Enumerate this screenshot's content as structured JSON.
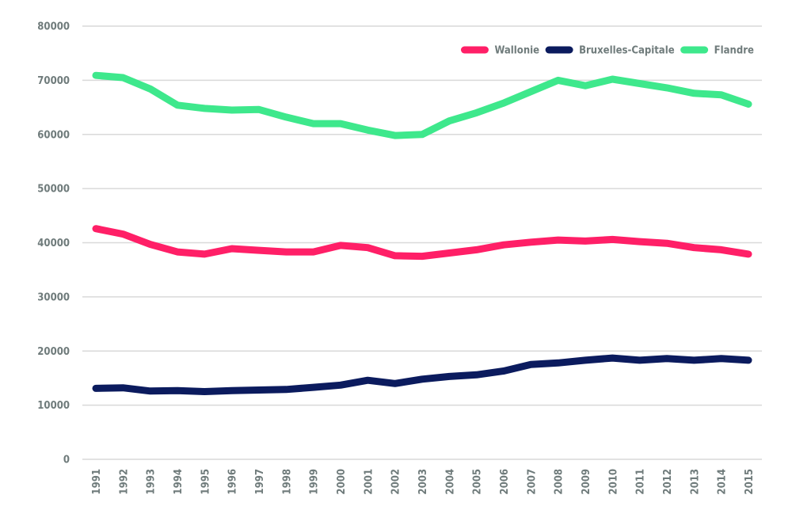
{
  "chart_data": {
    "type": "line",
    "title": "",
    "xlabel": "",
    "ylabel": "",
    "ylim": [
      0,
      80000
    ],
    "yticks": [
      0,
      10000,
      20000,
      30000,
      40000,
      50000,
      60000,
      70000,
      80000
    ],
    "grid": true,
    "legend_position": "top-right",
    "categories": [
      "1991",
      "1992",
      "1993",
      "1994",
      "1995",
      "1996",
      "1997",
      "1998",
      "1999",
      "2000",
      "2001",
      "2002",
      "2003",
      "2004",
      "2005",
      "2006",
      "2007",
      "2008",
      "2009",
      "2010",
      "2011",
      "2012",
      "2013",
      "2014",
      "2015"
    ],
    "series": [
      {
        "name": "Wallonie",
        "color": "#ff1f67",
        "values": [
          42600,
          41600,
          39700,
          38300,
          37900,
          38900,
          38600,
          38300,
          38300,
          39500,
          39100,
          37600,
          37500,
          38100,
          38700,
          39600,
          40100,
          40500,
          40300,
          40600,
          40200,
          39900,
          39100,
          38700,
          37900
        ]
      },
      {
        "name": "Bruxelles-Capitale",
        "color": "#0b1b5e",
        "values": [
          13100,
          13200,
          12600,
          12700,
          12500,
          12700,
          12800,
          12900,
          13300,
          13700,
          14600,
          14000,
          14800,
          15300,
          15600,
          16300,
          17500,
          17800,
          18300,
          18700,
          18300,
          18600,
          18300,
          18600,
          18300
        ]
      },
      {
        "name": "Flandre",
        "color": "#3ee88c",
        "values": [
          70900,
          70500,
          68400,
          65400,
          64800,
          64500,
          64600,
          63200,
          62000,
          62000,
          60800,
          59800,
          60000,
          62500,
          64000,
          65800,
          67900,
          70000,
          69000,
          70200,
          69400,
          68600,
          67600,
          67300,
          65600
        ]
      }
    ]
  }
}
